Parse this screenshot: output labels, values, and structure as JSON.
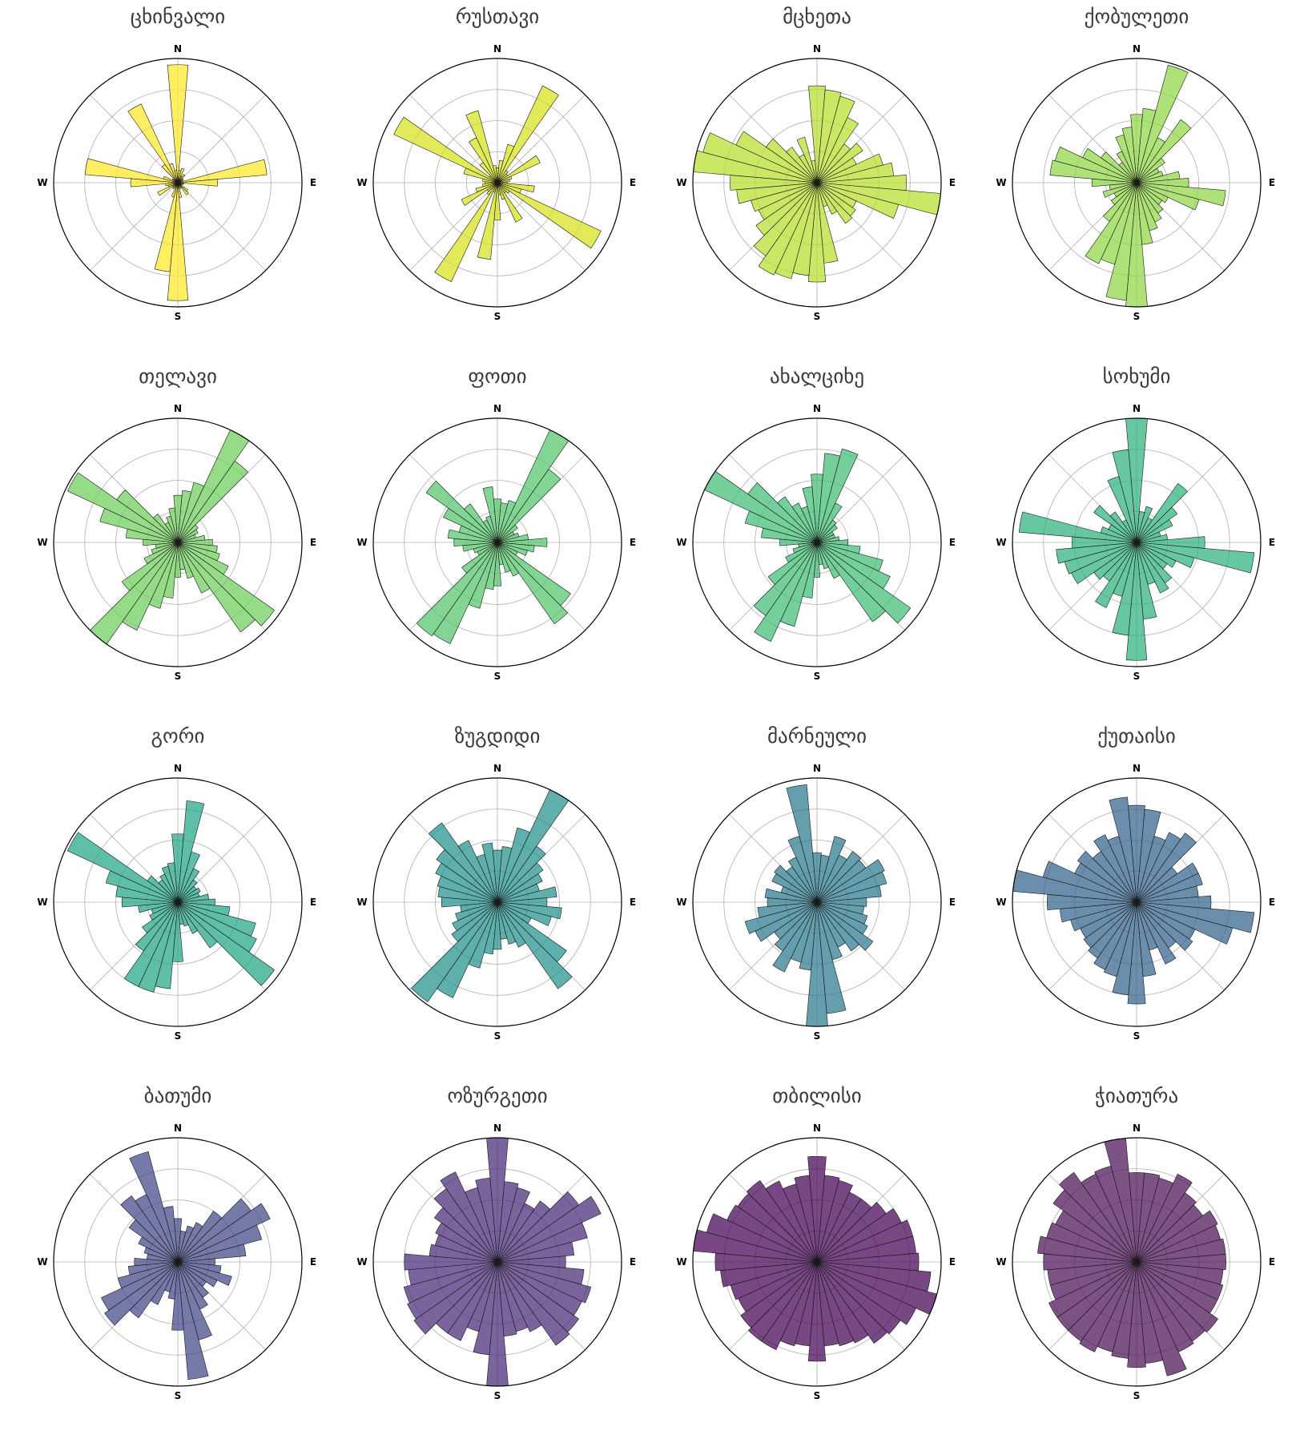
{
  "chart_data": [
    {
      "type": "polar-bar",
      "title": "ცხინვალი",
      "color": "#fde725",
      "directions": [
        "N",
        "E",
        "S",
        "W"
      ],
      "rmax": 1.0,
      "values": [
        0.95,
        0.1,
        0.12,
        0.06,
        0.08,
        0.05,
        0.05,
        0.04,
        0.72,
        0.32,
        0.05,
        0.04,
        0.04,
        0.1,
        0.12,
        0.05,
        0.05,
        0.12,
        0.95,
        0.72,
        0.12,
        0.05,
        0.06,
        0.05,
        0.18,
        0.08,
        0.1,
        0.38,
        0.75,
        0.12,
        0.05,
        0.05,
        0.18,
        0.7,
        0.16,
        0.1
      ]
    },
    {
      "type": "polar-bar",
      "title": "რუსთავი",
      "color": "#d8e219",
      "directions": [
        "N",
        "E",
        "S",
        "W"
      ],
      "rmax": 1.0,
      "values": [
        0.12,
        0.18,
        0.32,
        0.86,
        0.12,
        0.1,
        0.38,
        0.12,
        0.1,
        0.08,
        0.3,
        0.2,
        0.92,
        0.12,
        0.1,
        0.35,
        0.14,
        0.1,
        0.3,
        0.62,
        0.08,
        0.88,
        0.12,
        0.1,
        0.32,
        0.18,
        0.12,
        0.1,
        0.12,
        0.28,
        0.92,
        0.08,
        0.2,
        0.4,
        0.6,
        0.14
      ]
    },
    {
      "type": "polar-bar",
      "title": "მცხეთა",
      "color": "#b5de2b",
      "directions": [
        "N",
        "E",
        "S",
        "W"
      ],
      "rmax": 1.0,
      "values": [
        0.78,
        0.75,
        0.72,
        0.58,
        0.38,
        0.45,
        0.35,
        0.55,
        0.62,
        0.72,
        1.0,
        0.68,
        0.35,
        0.38,
        0.4,
        0.28,
        0.2,
        0.65,
        0.8,
        0.75,
        0.8,
        0.82,
        0.72,
        0.6,
        0.52,
        0.55,
        0.65,
        0.7,
        1.0,
        0.95,
        0.72,
        0.5,
        0.35,
        0.25,
        0.38,
        0.18
      ]
    },
    {
      "type": "polar-bar",
      "title": "ქობულეთი",
      "color": "#8fd744",
      "directions": [
        "N",
        "E",
        "S",
        "W"
      ],
      "rmax": 1.0,
      "values": [
        0.55,
        0.6,
        0.98,
        0.4,
        0.62,
        0.28,
        0.2,
        0.22,
        0.35,
        0.42,
        0.72,
        0.52,
        0.28,
        0.25,
        0.3,
        0.35,
        0.4,
        0.5,
        1.0,
        0.95,
        0.68,
        0.72,
        0.38,
        0.25,
        0.2,
        0.28,
        0.22,
        0.36,
        0.7,
        0.68,
        0.48,
        0.35,
        0.2,
        0.28,
        0.4,
        0.45
      ]
    },
    {
      "type": "polar-bar",
      "title": "თელავი",
      "color": "#6ccd5a",
      "directions": [
        "N",
        "E",
        "S",
        "W"
      ],
      "rmax": 1.0,
      "values": [
        0.38,
        0.42,
        0.5,
        1.0,
        0.8,
        0.2,
        0.18,
        0.15,
        0.22,
        0.28,
        0.32,
        0.35,
        0.45,
        0.95,
        0.88,
        0.45,
        0.3,
        0.22,
        0.28,
        0.45,
        0.55,
        0.78,
        1.0,
        0.55,
        0.3,
        0.22,
        0.18,
        0.28,
        0.42,
        0.65,
        0.98,
        0.6,
        0.28,
        0.18,
        0.22,
        0.28
      ]
    },
    {
      "type": "polar-bar",
      "title": "ფოთი",
      "color": "#52c569",
      "directions": [
        "N",
        "E",
        "S",
        "W"
      ],
      "rmax": 1.0,
      "values": [
        0.35,
        0.32,
        0.35,
        1.0,
        0.72,
        0.2,
        0.15,
        0.18,
        0.25,
        0.4,
        0.3,
        0.25,
        0.18,
        0.72,
        0.8,
        0.3,
        0.25,
        0.18,
        0.35,
        0.38,
        0.55,
        0.9,
        0.92,
        0.35,
        0.18,
        0.2,
        0.28,
        0.35,
        0.4,
        0.32,
        0.48,
        0.7,
        0.38,
        0.2,
        0.22,
        0.45
      ]
    },
    {
      "type": "polar-bar",
      "title": "ახალციხე",
      "color": "#3fbc73",
      "directions": [
        "N",
        "E",
        "S",
        "W"
      ],
      "rmax": 1.0,
      "values": [
        0.55,
        0.72,
        0.78,
        0.35,
        0.22,
        0.2,
        0.15,
        0.15,
        0.18,
        0.25,
        0.35,
        0.55,
        0.65,
        0.92,
        0.78,
        0.32,
        0.22,
        0.18,
        0.28,
        0.45,
        0.7,
        0.88,
        0.72,
        0.48,
        0.28,
        0.2,
        0.15,
        0.3,
        0.45,
        0.6,
        1.0,
        0.68,
        0.45,
        0.35,
        0.3,
        0.45
      ]
    },
    {
      "type": "polar-bar",
      "title": "სოხუმი",
      "color": "#2db27d",
      "directions": [
        "N",
        "E",
        "S",
        "W"
      ],
      "rmax": 1.0,
      "values": [
        1.0,
        0.25,
        0.3,
        0.22,
        0.58,
        0.4,
        0.32,
        0.2,
        0.25,
        0.55,
        0.95,
        0.48,
        0.35,
        0.3,
        0.4,
        0.45,
        0.35,
        0.62,
        0.95,
        0.75,
        0.45,
        0.58,
        0.38,
        0.42,
        0.58,
        0.6,
        0.65,
        0.52,
        0.95,
        0.3,
        0.25,
        0.42,
        0.3,
        0.2,
        0.55,
        0.75
      ]
    },
    {
      "type": "polar-bar",
      "title": "გორი",
      "color": "#21a585",
      "directions": [
        "N",
        "E",
        "S",
        "W"
      ],
      "rmax": 1.0,
      "values": [
        0.55,
        0.82,
        0.42,
        0.3,
        0.22,
        0.18,
        0.2,
        0.18,
        0.25,
        0.3,
        0.42,
        0.65,
        0.7,
        0.95,
        0.45,
        0.28,
        0.2,
        0.18,
        0.48,
        0.7,
        0.75,
        0.75,
        0.48,
        0.35,
        0.25,
        0.22,
        0.32,
        0.45,
        0.5,
        0.6,
        0.98,
        0.3,
        0.22,
        0.25,
        0.3,
        0.32
      ]
    },
    {
      "type": "polar-bar",
      "title": "ზუგდიდი",
      "color": "#21918c",
      "directions": [
        "N",
        "E",
        "S",
        "W"
      ],
      "rmax": 1.0,
      "values": [
        0.42,
        0.45,
        0.62,
        1.0,
        0.55,
        0.45,
        0.4,
        0.35,
        0.48,
        0.4,
        0.52,
        0.45,
        0.3,
        0.68,
        0.85,
        0.4,
        0.35,
        0.3,
        0.38,
        0.42,
        0.55,
        0.85,
        0.98,
        0.45,
        0.4,
        0.35,
        0.3,
        0.45,
        0.48,
        0.5,
        0.55,
        0.6,
        0.78,
        0.55,
        0.4,
        0.48
      ]
    },
    {
      "type": "polar-bar",
      "title": "მარნეული",
      "color": "#2a788e",
      "directions": [
        "N",
        "E",
        "S",
        "W"
      ],
      "rmax": 1.0,
      "values": [
        0.4,
        0.38,
        0.55,
        0.42,
        0.5,
        0.48,
        0.6,
        0.58,
        0.52,
        0.4,
        0.38,
        0.42,
        0.45,
        0.55,
        0.48,
        0.4,
        0.48,
        0.9,
        1.0,
        0.55,
        0.5,
        0.62,
        0.48,
        0.42,
        0.55,
        0.6,
        0.48,
        0.4,
        0.42,
        0.3,
        0.4,
        0.42,
        0.35,
        0.4,
        0.55,
        0.95
      ]
    },
    {
      "type": "polar-bar",
      "title": "ქუთაისი",
      "color": "#33638d",
      "directions": [
        "N",
        "E",
        "S",
        "W"
      ],
      "rmax": 1.0,
      "values": [
        0.78,
        0.75,
        0.55,
        0.62,
        0.68,
        0.4,
        0.55,
        0.55,
        0.5,
        0.6,
        0.95,
        0.8,
        0.52,
        0.55,
        0.45,
        0.55,
        0.4,
        0.6,
        0.82,
        0.75,
        0.62,
        0.6,
        0.55,
        0.52,
        0.5,
        0.55,
        0.62,
        0.72,
        1.0,
        0.78,
        0.55,
        0.58,
        0.5,
        0.6,
        0.55,
        0.85
      ]
    },
    {
      "type": "polar-bar",
      "title": "ბათუმი",
      "color": "#404688",
      "directions": [
        "N",
        "E",
        "S",
        "W"
      ],
      "rmax": 1.0,
      "values": [
        0.35,
        0.25,
        0.3,
        0.35,
        0.5,
        0.72,
        0.82,
        0.7,
        0.55,
        0.3,
        0.35,
        0.45,
        0.35,
        0.28,
        0.35,
        0.42,
        0.65,
        0.95,
        0.55,
        0.3,
        0.25,
        0.38,
        0.55,
        0.72,
        0.68,
        0.5,
        0.4,
        0.35,
        0.25,
        0.28,
        0.35,
        0.48,
        0.65,
        0.6,
        0.92,
        0.45
      ]
    },
    {
      "type": "polar-bar",
      "title": "ოზურგეთი",
      "color": "#482878",
      "directions": [
        "N",
        "E",
        "S",
        "W"
      ],
      "rmax": 1.0,
      "values": [
        1.0,
        0.65,
        0.62,
        0.52,
        0.6,
        0.8,
        0.92,
        0.75,
        0.62,
        0.55,
        0.7,
        0.78,
        0.75,
        0.8,
        0.82,
        0.62,
        0.58,
        0.6,
        1.0,
        0.75,
        0.58,
        0.7,
        0.7,
        0.82,
        0.8,
        0.78,
        0.72,
        0.75,
        0.55,
        0.52,
        0.55,
        0.62,
        0.72,
        0.8,
        0.62,
        0.68
      ]
    },
    {
      "type": "polar-bar",
      "title": "თბილისი",
      "color": "#440154",
      "directions": [
        "N",
        "E",
        "S",
        "W"
      ],
      "rmax": 1.0,
      "values": [
        0.85,
        0.7,
        0.68,
        0.62,
        0.62,
        0.68,
        0.75,
        0.8,
        0.8,
        0.82,
        0.92,
        1.0,
        0.88,
        0.82,
        0.8,
        0.72,
        0.7,
        0.68,
        0.8,
        0.68,
        0.7,
        0.78,
        0.78,
        0.75,
        0.7,
        0.72,
        0.78,
        0.82,
        1.0,
        0.92,
        0.8,
        0.78,
        0.8,
        0.72,
        0.65,
        0.7
      ]
    },
    {
      "type": "polar-bar",
      "title": "ჭიათურა",
      "color": "#4b0f56",
      "directions": [
        "N",
        "E",
        "S",
        "W"
      ],
      "rmax": 1.0,
      "values": [
        0.72,
        0.72,
        0.7,
        0.78,
        0.68,
        0.65,
        0.72,
        0.7,
        0.72,
        0.72,
        0.7,
        0.72,
        0.72,
        0.8,
        0.78,
        0.8,
        0.95,
        0.82,
        0.85,
        0.78,
        0.75,
        0.8,
        0.78,
        0.78,
        0.78,
        0.72,
        0.72,
        0.75,
        0.8,
        0.75,
        0.72,
        0.82,
        0.88,
        0.78,
        0.8,
        1.0
      ]
    }
  ]
}
